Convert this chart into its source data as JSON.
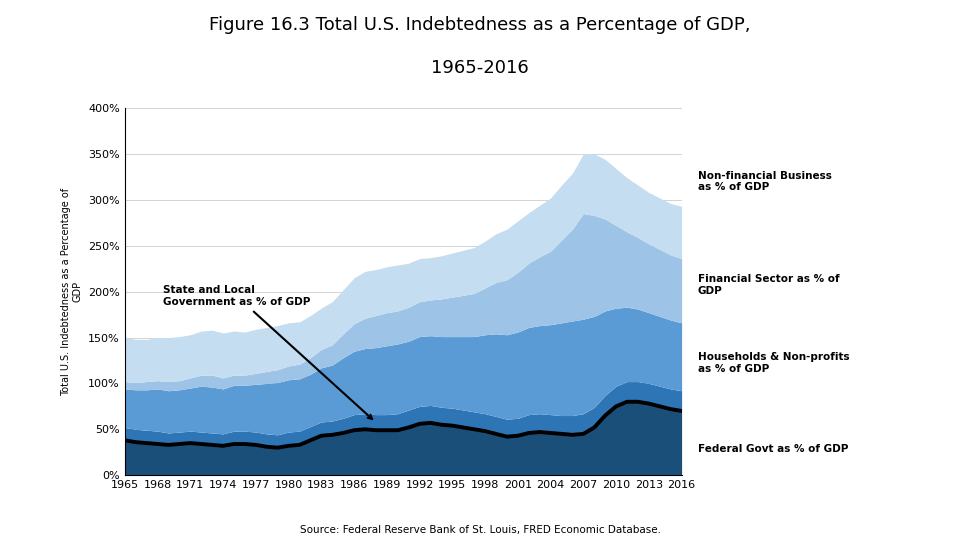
{
  "title_line1": "Figure 16.3 Total U.S. Indebtedness as a Percentage of GDP,",
  "title_line2": "1965-2016",
  "ylabel": "Total U.S. Indebtedness as a Percentage of\nGDP",
  "source": "Source: Federal Reserve Bank of St. Louis, FRED Economic Database.",
  "years": [
    1965,
    1966,
    1967,
    1968,
    1969,
    1970,
    1971,
    1972,
    1973,
    1974,
    1975,
    1976,
    1977,
    1978,
    1979,
    1980,
    1981,
    1982,
    1983,
    1984,
    1985,
    1986,
    1987,
    1988,
    1989,
    1990,
    1991,
    1992,
    1993,
    1994,
    1995,
    1996,
    1997,
    1998,
    1999,
    2000,
    2001,
    2002,
    2003,
    2004,
    2005,
    2006,
    2007,
    2008,
    2009,
    2010,
    2011,
    2012,
    2013,
    2014,
    2015,
    2016
  ],
  "federal_govt": [
    38,
    36,
    35,
    34,
    33,
    34,
    35,
    34,
    33,
    32,
    34,
    34,
    33,
    31,
    30,
    32,
    33,
    38,
    43,
    44,
    46,
    49,
    50,
    49,
    49,
    49,
    52,
    56,
    57,
    55,
    54,
    52,
    50,
    48,
    45,
    42,
    43,
    46,
    47,
    46,
    45,
    44,
    45,
    52,
    65,
    75,
    80,
    80,
    78,
    75,
    72,
    70
  ],
  "households": [
    42,
    43,
    44,
    46,
    46,
    46,
    47,
    50,
    50,
    49,
    50,
    50,
    52,
    55,
    57,
    57,
    57,
    57,
    59,
    61,
    66,
    69,
    71,
    73,
    75,
    76,
    75,
    76,
    76,
    77,
    78,
    80,
    82,
    86,
    90,
    92,
    94,
    95,
    96,
    98,
    101,
    103,
    103,
    99,
    92,
    85,
    81,
    79,
    77,
    76,
    75,
    74
  ],
  "financial": [
    8,
    8,
    9,
    9,
    10,
    10,
    11,
    12,
    13,
    12,
    11,
    11,
    12,
    13,
    14,
    15,
    16,
    18,
    20,
    22,
    26,
    30,
    33,
    35,
    36,
    36,
    37,
    38,
    39,
    41,
    43,
    45,
    47,
    51,
    56,
    60,
    65,
    70,
    75,
    80,
    90,
    100,
    115,
    110,
    100,
    90,
    82,
    78,
    75,
    73,
    71,
    70
  ],
  "nonfinancial_business": [
    48,
    47,
    46,
    47,
    48,
    48,
    47,
    48,
    49,
    49,
    48,
    47,
    48,
    48,
    48,
    47,
    46,
    46,
    45,
    47,
    48,
    50,
    51,
    50,
    50,
    50,
    48,
    47,
    46,
    47,
    48,
    49,
    50,
    51,
    53,
    55,
    56,
    55,
    56,
    58,
    60,
    61,
    65,
    67,
    65,
    62,
    59,
    57,
    56,
    56,
    56,
    57
  ],
  "state_local": [
    14,
    14,
    14,
    14,
    13,
    13,
    13,
    13,
    13,
    13,
    14,
    14,
    14,
    14,
    14,
    15,
    15,
    15,
    15,
    15,
    16,
    17,
    17,
    17,
    17,
    18,
    19,
    19,
    19,
    19,
    19,
    19,
    19,
    19,
    19,
    19,
    19,
    20,
    20,
    20,
    20,
    21,
    22,
    22,
    22,
    22,
    22,
    22,
    22,
    22,
    22,
    22
  ],
  "colors": {
    "federal_govt": "#1a4f7a",
    "state_local": "#2e75b6",
    "households": "#5b9bd5",
    "financial": "#9dc3e6",
    "nonfinancial_business": "#c5ddf0"
  },
  "black_line_color": "#000000",
  "background_color": "#ffffff",
  "ylim": [
    0,
    400
  ],
  "yticks": [
    0,
    50,
    100,
    150,
    200,
    250,
    300,
    350,
    400
  ],
  "ytick_labels": [
    "0%",
    "50%",
    "100%",
    "150%",
    "200%",
    "250%",
    "300%",
    "350%",
    "400%"
  ]
}
